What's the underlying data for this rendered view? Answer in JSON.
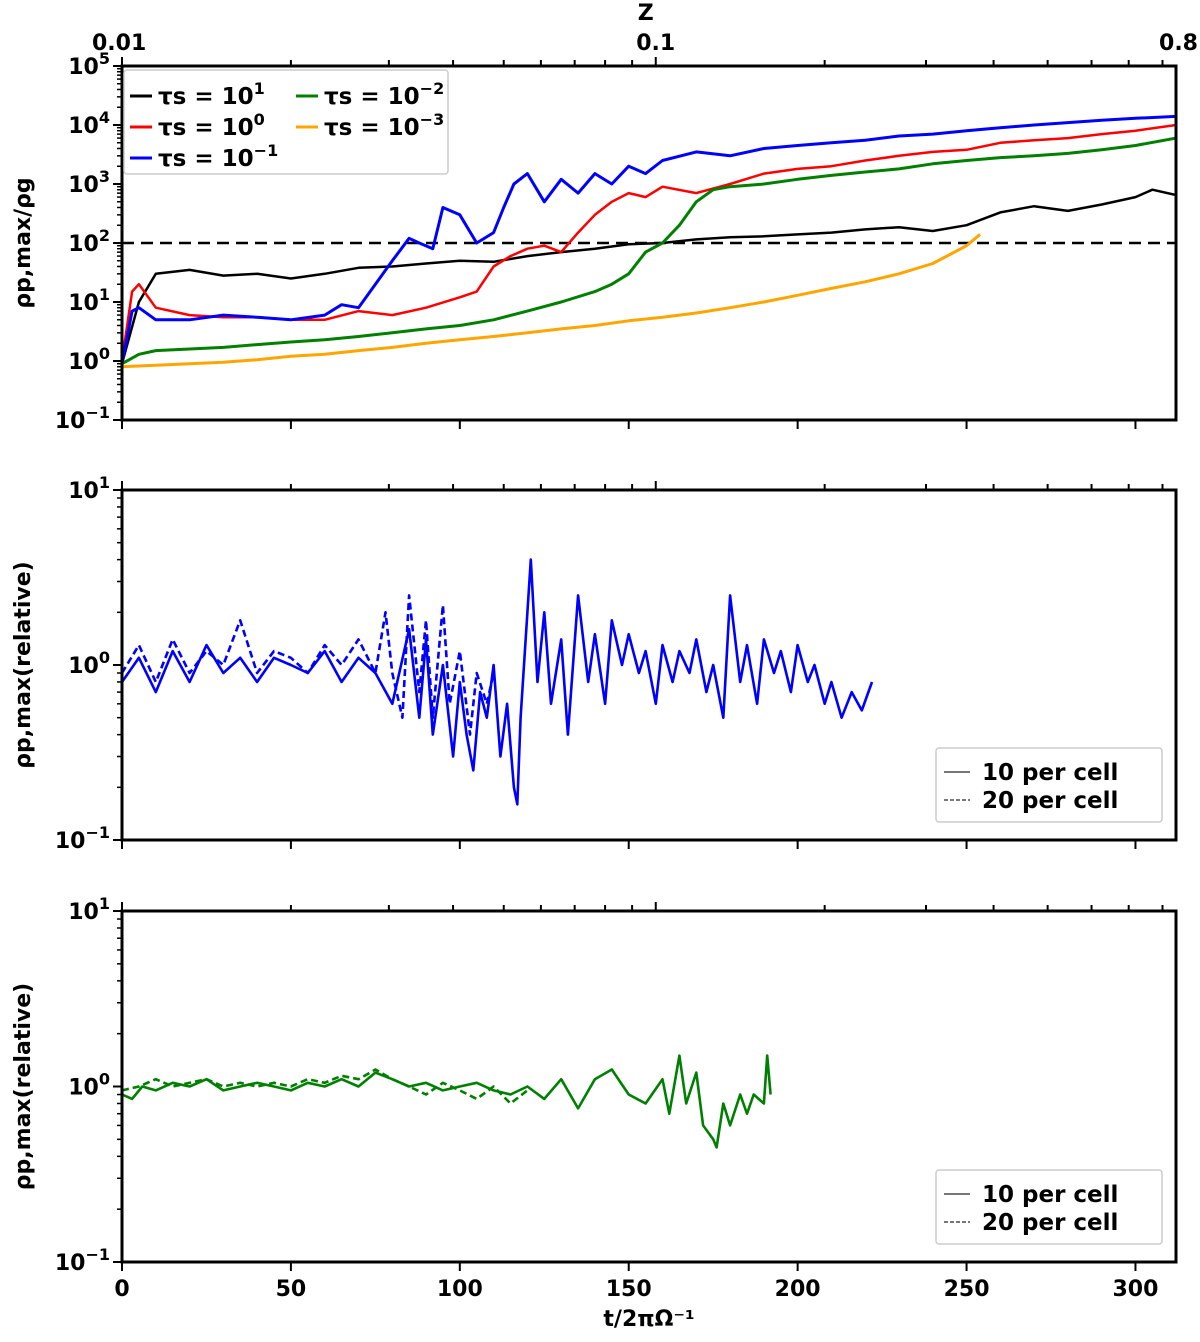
{
  "chart_data": [
    {
      "panel": "top",
      "type": "line",
      "yscale": "log",
      "ylim": [
        0.1,
        100000
      ],
      "xlim": [
        0,
        312
      ],
      "ylabel": "ρp,max/ρg",
      "top_axis": {
        "label": "Z",
        "ticks": [
          {
            "x": 0,
            "label": "0.01"
          },
          {
            "x": 158,
            "label": "0.1"
          },
          {
            "x": 312,
            "label": "0.8"
          }
        ]
      },
      "yticks": [
        {
          "value": 0.1,
          "base": "10",
          "exp": "−1"
        },
        {
          "value": 1,
          "base": "10",
          "exp": "0"
        },
        {
          "value": 10,
          "base": "10",
          "exp": "1"
        },
        {
          "value": 100,
          "base": "10",
          "exp": "2"
        },
        {
          "value": 1000,
          "base": "10",
          "exp": "3"
        },
        {
          "value": 10000,
          "base": "10",
          "exp": "4"
        },
        {
          "value": 100000,
          "base": "10",
          "exp": "5"
        }
      ],
      "reference_line": {
        "y": 100,
        "style": "dashed",
        "color": "#000000"
      },
      "legend": [
        {
          "label": "τs = 10",
          "exp": "1",
          "color": "#000000"
        },
        {
          "label": "τs = 10",
          "exp": "0",
          "color": "#ff0000"
        },
        {
          "label": "τs = 10",
          "exp": "−1",
          "color": "#0000ff"
        },
        {
          "label": "τs = 10",
          "exp": "−2",
          "color": "#008000"
        },
        {
          "label": "τs = 10",
          "exp": "−3",
          "color": "#ffa500"
        }
      ],
      "series": [
        {
          "name": "τs = 10^1",
          "color": "#000000",
          "width": 2.5,
          "x": [
            0,
            5,
            10,
            20,
            30,
            40,
            50,
            60,
            70,
            80,
            90,
            100,
            110,
            120,
            130,
            140,
            150,
            160,
            170,
            180,
            190,
            200,
            210,
            220,
            230,
            240,
            250,
            260,
            270,
            280,
            290,
            300,
            305,
            312
          ],
          "y": [
            0.9,
            10,
            30,
            35,
            28,
            30,
            25,
            30,
            38,
            40,
            45,
            50,
            48,
            60,
            70,
            80,
            95,
            100,
            115,
            125,
            130,
            140,
            150,
            170,
            185,
            160,
            200,
            330,
            420,
            350,
            450,
            600,
            800,
            650
          ]
        },
        {
          "name": "τs = 10^0",
          "color": "#ff0000",
          "width": 2.5,
          "x": [
            0,
            3,
            5,
            10,
            20,
            30,
            40,
            50,
            60,
            70,
            80,
            90,
            100,
            105,
            110,
            115,
            120,
            125,
            130,
            135,
            140,
            145,
            150,
            155,
            160,
            170,
            180,
            190,
            200,
            210,
            220,
            230,
            240,
            250,
            260,
            270,
            280,
            290,
            300,
            312
          ],
          "y": [
            1,
            15,
            20,
            8,
            6,
            5.5,
            5.5,
            5,
            5,
            7,
            6,
            8,
            12,
            15,
            40,
            60,
            80,
            90,
            70,
            150,
            300,
            500,
            700,
            600,
            900,
            700,
            1000,
            1500,
            1800,
            2000,
            2500,
            3000,
            3500,
            3800,
            5000,
            5500,
            6000,
            7000,
            8000,
            10000
          ]
        },
        {
          "name": "τs = 10^-1",
          "color": "#0000ff",
          "width": 3,
          "x": [
            0,
            3,
            5,
            10,
            20,
            30,
            40,
            50,
            60,
            65,
            70,
            75,
            80,
            85,
            88,
            92,
            95,
            100,
            105,
            110,
            113,
            116,
            120,
            125,
            130,
            135,
            140,
            145,
            150,
            155,
            160,
            170,
            180,
            190,
            200,
            210,
            220,
            230,
            240,
            250,
            260,
            270,
            280,
            290,
            300,
            312
          ],
          "y": [
            0.9,
            7,
            8,
            5,
            5,
            6,
            5.5,
            5,
            6,
            9,
            8,
            20,
            50,
            120,
            100,
            80,
            400,
            300,
            100,
            150,
            400,
            1000,
            1500,
            500,
            1200,
            700,
            1500,
            1000,
            2000,
            1500,
            2500,
            3500,
            3000,
            4000,
            4500,
            5000,
            5500,
            6500,
            7000,
            8000,
            9000,
            10000,
            11000,
            12000,
            13000,
            14000
          ]
        },
        {
          "name": "τs = 10^-2",
          "color": "#008000",
          "width": 3,
          "x": [
            0,
            5,
            10,
            20,
            30,
            40,
            50,
            60,
            70,
            80,
            90,
            100,
            110,
            120,
            130,
            140,
            145,
            150,
            155,
            160,
            165,
            170,
            175,
            180,
            190,
            200,
            210,
            220,
            230,
            240,
            250,
            260,
            270,
            280,
            290,
            300,
            312
          ],
          "y": [
            0.9,
            1.3,
            1.5,
            1.6,
            1.7,
            1.9,
            2.1,
            2.3,
            2.6,
            3,
            3.5,
            4,
            5,
            7,
            10,
            15,
            20,
            30,
            70,
            100,
            200,
            500,
            800,
            900,
            1000,
            1200,
            1400,
            1600,
            1800,
            2200,
            2500,
            2800,
            3000,
            3300,
            3800,
            4500,
            6000
          ]
        },
        {
          "name": "τs = 10^-3",
          "color": "#ffa500",
          "width": 3,
          "x": [
            0,
            10,
            20,
            30,
            40,
            50,
            60,
            70,
            80,
            90,
            100,
            110,
            120,
            130,
            140,
            150,
            160,
            170,
            180,
            190,
            200,
            210,
            220,
            230,
            240,
            250,
            254
          ],
          "y": [
            0.8,
            0.85,
            0.9,
            0.95,
            1.05,
            1.2,
            1.3,
            1.5,
            1.7,
            2,
            2.3,
            2.6,
            3,
            3.5,
            4,
            4.8,
            5.5,
            6.5,
            8,
            10,
            13,
            17,
            22,
            30,
            45,
            90,
            140
          ]
        }
      ]
    },
    {
      "panel": "middle",
      "type": "line",
      "yscale": "log",
      "ylim": [
        0.1,
        10
      ],
      "xlim": [
        0,
        312
      ],
      "ylabel": "ρp,max(relative)",
      "yticks": [
        {
          "value": 0.1,
          "base": "10",
          "exp": "−1"
        },
        {
          "value": 1,
          "base": "10",
          "exp": "0"
        },
        {
          "value": 10,
          "base": "10",
          "exp": "1"
        }
      ],
      "legend": [
        {
          "label": "10 per cell",
          "style": "solid"
        },
        {
          "label": "20 per cell",
          "style": "dashed"
        }
      ],
      "series": [
        {
          "name": "10 per cell",
          "color": "#0000ff",
          "style": "solid",
          "x": [
            0,
            5,
            10,
            15,
            20,
            25,
            30,
            35,
            40,
            45,
            50,
            55,
            60,
            65,
            70,
            75,
            80,
            85,
            88,
            90,
            92,
            95,
            98,
            100,
            102,
            104,
            106,
            108,
            110,
            112,
            114,
            116,
            117,
            118,
            120,
            121,
            123,
            125,
            127,
            130,
            132,
            135,
            138,
            140,
            143,
            145,
            148,
            150,
            153,
            155,
            158,
            160,
            163,
            165,
            168,
            170,
            173,
            175,
            178,
            180,
            183,
            185,
            188,
            190,
            193,
            195,
            198,
            200,
            203,
            205,
            208,
            210,
            213,
            216,
            219,
            222
          ],
          "y": [
            0.8,
            1.1,
            0.7,
            1.2,
            0.8,
            1.3,
            0.9,
            1.1,
            0.8,
            1.1,
            1.0,
            0.9,
            1.2,
            0.8,
            1.1,
            0.9,
            0.6,
            1.6,
            0.5,
            1.4,
            0.4,
            1.0,
            0.3,
            0.8,
            0.4,
            0.25,
            0.7,
            0.5,
            1.0,
            0.3,
            0.6,
            0.2,
            0.16,
            0.5,
            2.0,
            4.0,
            0.8,
            2.0,
            0.6,
            1.4,
            0.4,
            2.5,
            0.8,
            1.5,
            0.6,
            1.8,
            1.0,
            1.5,
            0.9,
            1.2,
            0.6,
            1.3,
            0.8,
            1.2,
            0.9,
            1.4,
            0.7,
            1.0,
            0.5,
            2.5,
            0.8,
            1.3,
            0.6,
            1.4,
            0.9,
            1.2,
            0.7,
            1.3,
            0.8,
            1.0,
            0.6,
            0.8,
            0.5,
            0.7,
            0.55,
            0.8
          ]
        },
        {
          "name": "20 per cell",
          "color": "#0000ff",
          "style": "dashed",
          "x": [
            0,
            5,
            10,
            15,
            20,
            25,
            30,
            35,
            40,
            45,
            50,
            55,
            60,
            65,
            70,
            75,
            78,
            80,
            83,
            85,
            88,
            90,
            92,
            95,
            97,
            100,
            103,
            105,
            108,
            110
          ],
          "y": [
            0.9,
            1.3,
            0.8,
            1.4,
            0.9,
            1.2,
            1.0,
            1.8,
            0.9,
            1.2,
            1.1,
            0.9,
            1.3,
            1.0,
            1.4,
            0.9,
            2.0,
            0.9,
            0.5,
            2.5,
            0.7,
            1.8,
            0.5,
            2.2,
            0.6,
            1.2,
            0.4,
            0.9,
            0.6,
            0.9
          ]
        }
      ]
    },
    {
      "panel": "bottom",
      "type": "line",
      "yscale": "log",
      "ylim": [
        0.1,
        10
      ],
      "xlim": [
        0,
        312
      ],
      "xlabel": "t/2πΩ⁻¹",
      "ylabel": "ρp,max(relative)",
      "xticks": [
        0,
        50,
        100,
        150,
        200,
        250,
        300
      ],
      "yticks": [
        {
          "value": 0.1,
          "base": "10",
          "exp": "−1"
        },
        {
          "value": 1,
          "base": "10",
          "exp": "0"
        },
        {
          "value": 10,
          "base": "10",
          "exp": "1"
        }
      ],
      "legend": [
        {
          "label": "10 per cell",
          "style": "solid"
        },
        {
          "label": "20 per cell",
          "style": "dashed"
        }
      ],
      "series": [
        {
          "name": "10 per cell",
          "color": "#008000",
          "style": "solid",
          "x": [
            0,
            3,
            6,
            10,
            15,
            20,
            25,
            30,
            35,
            40,
            45,
            50,
            55,
            60,
            65,
            70,
            75,
            80,
            85,
            90,
            95,
            100,
            105,
            110,
            115,
            120,
            125,
            130,
            135,
            140,
            145,
            150,
            155,
            160,
            162,
            165,
            167,
            170,
            172,
            175,
            176,
            178,
            180,
            183,
            185,
            187,
            190,
            191,
            192
          ],
          "y": [
            0.9,
            0.85,
            1.0,
            0.95,
            1.05,
            1.0,
            1.1,
            0.95,
            1.0,
            1.05,
            1.0,
            0.95,
            1.05,
            1.0,
            1.1,
            1.0,
            1.2,
            1.1,
            1.0,
            1.05,
            0.95,
            1.0,
            1.05,
            0.95,
            0.9,
            1.0,
            0.85,
            1.1,
            0.75,
            1.1,
            1.25,
            0.9,
            0.8,
            1.1,
            0.7,
            1.5,
            0.8,
            1.2,
            0.6,
            0.5,
            0.45,
            0.8,
            0.6,
            0.9,
            0.7,
            0.9,
            0.8,
            1.5,
            0.9
          ]
        },
        {
          "name": "20 per cell",
          "color": "#008000",
          "style": "dashed",
          "x": [
            0,
            5,
            10,
            15,
            20,
            25,
            30,
            35,
            40,
            45,
            50,
            55,
            60,
            65,
            70,
            75,
            80,
            85,
            90,
            95,
            100,
            105,
            110,
            115,
            120
          ],
          "y": [
            0.95,
            1.0,
            1.1,
            1.0,
            1.05,
            1.1,
            1.0,
            1.05,
            1.0,
            1.05,
            1.0,
            1.1,
            1.05,
            1.15,
            1.1,
            1.25,
            1.1,
            1.0,
            0.9,
            1.05,
            0.95,
            0.85,
            1.0,
            0.8,
            0.95
          ]
        }
      ]
    }
  ]
}
